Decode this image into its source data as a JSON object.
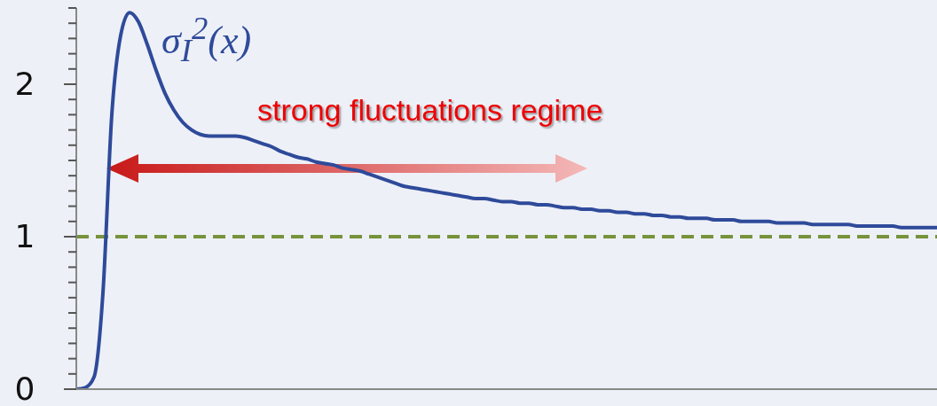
{
  "chart_data": {
    "type": "line",
    "categories": [
      null,
      null,
      null,
      null,
      null,
      null,
      null,
      null,
      null,
      null,
      null,
      null,
      null,
      null,
      null,
      null,
      null,
      null,
      null,
      null,
      null,
      null,
      null,
      null,
      null,
      null,
      null,
      null,
      null,
      null,
      null,
      null,
      null,
      null,
      null,
      null,
      null,
      null,
      null,
      null,
      null,
      null,
      null,
      null,
      null,
      null,
      null,
      null,
      null,
      null,
      null,
      null,
      null,
      null,
      null,
      null,
      null,
      null,
      null,
      null,
      null,
      null,
      null,
      null,
      null,
      null,
      null,
      null,
      null,
      null,
      null,
      null,
      null,
      null,
      null,
      null,
      null,
      null,
      null,
      null,
      null,
      null,
      null,
      null,
      null,
      null,
      null,
      null,
      null,
      null,
      null,
      null,
      null,
      null,
      null,
      null,
      null,
      null
    ],
    "series": [
      {
        "name": "σ$_{I}$$^{2}$(x)",
        "color": "#2e4a9a",
        "values": [
          0,
          0.01,
          0.08,
          0.63,
          1.8,
          2.32,
          2.47,
          2.41,
          2.26,
          2.09,
          1.94,
          1.83,
          1.75,
          1.7,
          1.67,
          1.66,
          1.66,
          1.66,
          1.66,
          1.65,
          1.63,
          1.61,
          1.59,
          1.56,
          1.54,
          1.52,
          1.51,
          1.49,
          1.48,
          1.47,
          1.45,
          1.44,
          1.43,
          1.41,
          1.39,
          1.37,
          1.35,
          1.33,
          1.32,
          1.31,
          1.3,
          1.29,
          1.28,
          1.27,
          1.26,
          1.25,
          1.25,
          1.24,
          1.23,
          1.23,
          1.22,
          1.22,
          1.21,
          1.21,
          1.2,
          1.19,
          1.19,
          1.18,
          1.18,
          1.17,
          1.17,
          1.16,
          1.16,
          1.15,
          1.15,
          1.14,
          1.14,
          1.13,
          1.13,
          1.12,
          1.12,
          1.12,
          1.11,
          1.11,
          1.11,
          1.1,
          1.1,
          1.1,
          1.1,
          1.09,
          1.09,
          1.09,
          1.09,
          1.08,
          1.08,
          1.08,
          1.08,
          1.08,
          1.07,
          1.07,
          1.07,
          1.07,
          1.07,
          1.06,
          1.06,
          1.06,
          1.06,
          1.06
        ]
      }
    ],
    "ylim": [
      0,
      2.5
    ],
    "yticks": [
      0,
      {
        "value": 0.1,
        "label": null
      },
      {
        "value": 0.2,
        "label": null
      },
      {
        "value": 0.3,
        "label": null
      },
      {
        "value": 0.4,
        "label": null
      },
      {
        "value": 0.5,
        "label": null
      },
      {
        "value": 0.6,
        "label": null
      },
      {
        "value": 0.7,
        "label": null
      },
      {
        "value": 0.8,
        "label": null
      },
      {
        "value": 0.9,
        "label": null
      },
      1,
      {
        "value": 1.1,
        "label": null
      },
      {
        "value": 1.2,
        "label": null
      },
      {
        "value": 1.3,
        "label": null
      },
      {
        "value": 1.4,
        "label": null
      },
      {
        "value": 1.5,
        "label": null
      },
      {
        "value": 1.6,
        "label": null
      },
      {
        "value": 1.7,
        "label": null
      },
      {
        "value": 1.8,
        "label": null
      },
      {
        "value": 1.9,
        "label": null
      },
      2,
      {
        "value": 2.1,
        "label": null
      },
      {
        "value": 2.2,
        "label": null
      },
      {
        "value": 2.3,
        "label": null
      },
      {
        "value": 2.4,
        "label": null
      },
      {
        "value": 2.5,
        "label": null
      }
    ],
    "ref_lines": [
      {
        "axis": "y",
        "value": 1,
        "color": "#77933c",
        "line_style": "dashed"
      }
    ],
    "annotations": [
      "strong fluctuations regime"
    ],
    "marker": "none",
    "tick_labels": "y",
    "line_style": "solid"
  }
}
